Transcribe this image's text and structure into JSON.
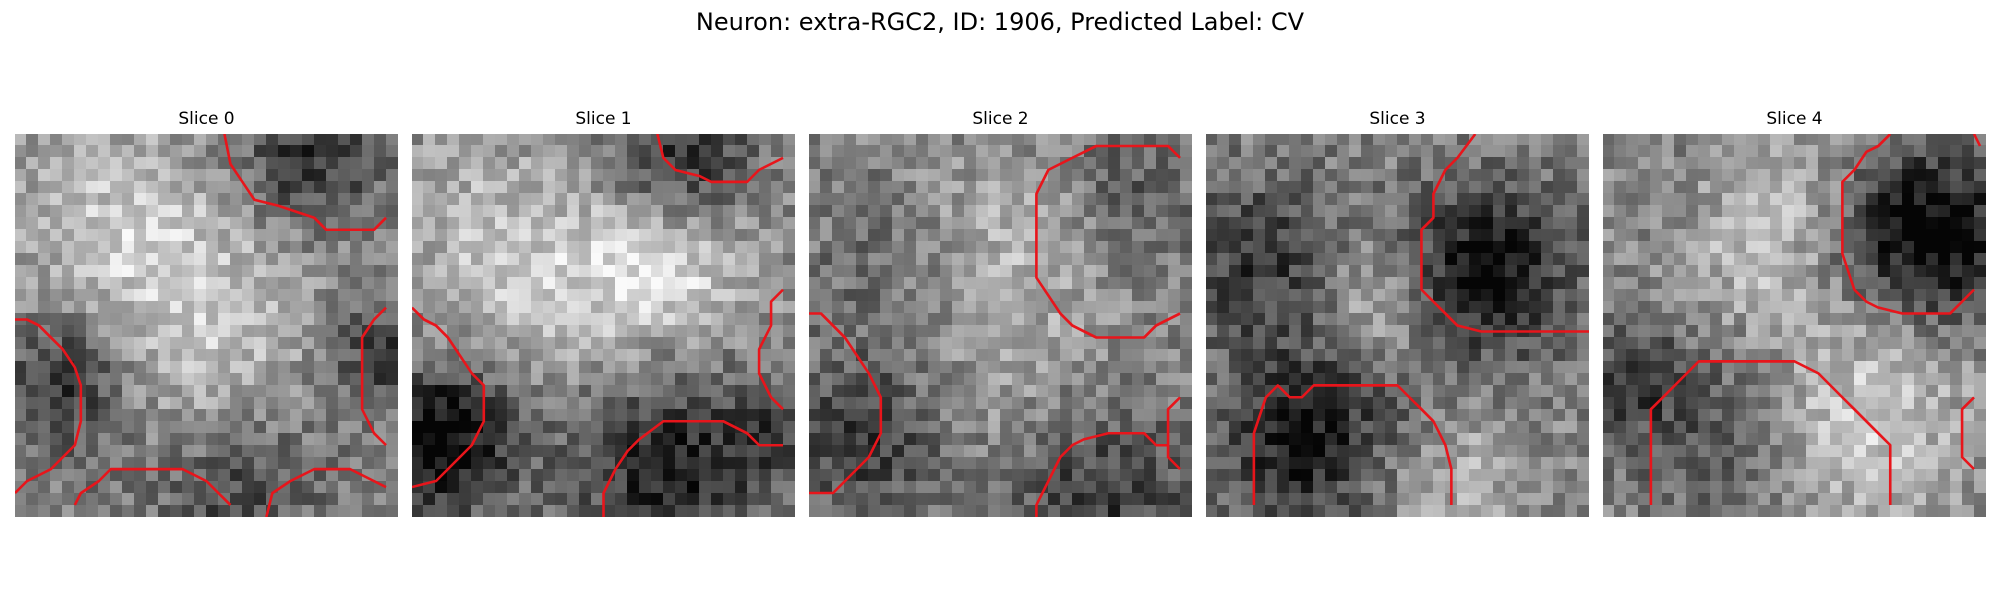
{
  "figure": {
    "title": "Neuron: extra-RGC2, ID: 1906, Predicted Label: CV"
  },
  "panels": [
    {
      "title": "Slice 0"
    },
    {
      "title": "Slice 1"
    },
    {
      "title": "Slice 2"
    },
    {
      "title": "Slice 3"
    },
    {
      "title": "Slice 4"
    }
  ],
  "colors": {
    "contour": "#e8151b",
    "background": "#ffffff"
  },
  "colormap": "gray"
}
